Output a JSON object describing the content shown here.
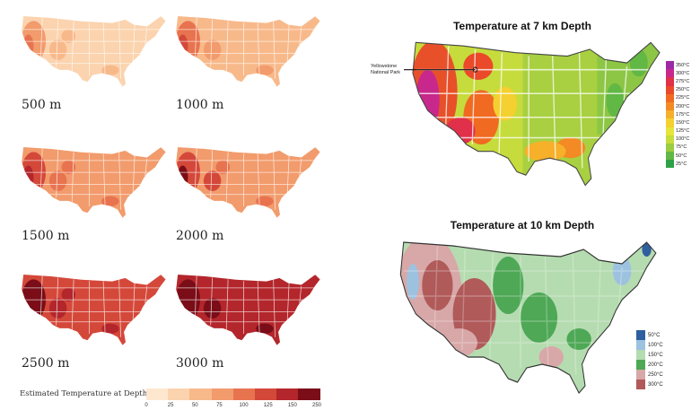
{
  "small_maps": [
    {
      "label": "500 m",
      "level": 0.12
    },
    {
      "label": "1000 m",
      "level": 0.22
    },
    {
      "label": "1500 m",
      "level": 0.38
    },
    {
      "label": "2000 m",
      "level": 0.48
    },
    {
      "label": "2500 m",
      "level": 0.68
    },
    {
      "label": "3000 m",
      "level": 0.8
    }
  ],
  "bottom_legend": {
    "title": "Estimated Temperature at Depth (°C)",
    "ticks": [
      "0",
      "25",
      "50",
      "75",
      "100",
      "125",
      "150",
      "250"
    ],
    "colors": [
      "#fde7cf",
      "#fbd3ae",
      "#f8b98a",
      "#f29b6c",
      "#e8734f",
      "#d4483a",
      "#b3262b",
      "#7a0d17"
    ]
  },
  "map_7km": {
    "title": "Temperature at 7 km Depth",
    "annotation_line1": "Yellowstone",
    "annotation_line2": "National Park",
    "legend": [
      {
        "label": "350°C",
        "color": "#9c2aa6"
      },
      {
        "label": "300°C",
        "color": "#c8288c"
      },
      {
        "label": "275°C",
        "color": "#e0304a"
      },
      {
        "label": "250°C",
        "color": "#ea4a2a"
      },
      {
        "label": "225°C",
        "color": "#f06a22"
      },
      {
        "label": "200°C",
        "color": "#f48a24"
      },
      {
        "label": "175°C",
        "color": "#f6b02a"
      },
      {
        "label": "150°C",
        "color": "#f4d030"
      },
      {
        "label": "125°C",
        "color": "#e8e43a"
      },
      {
        "label": "100°C",
        "color": "#c8dc3c"
      },
      {
        "label": "75°C",
        "color": "#9ccc40"
      },
      {
        "label": "50°C",
        "color": "#62b844"
      },
      {
        "label": "25°C",
        "color": "#2ea048"
      }
    ]
  },
  "map_10km": {
    "title": "Temperature at 10 km Depth",
    "legend": [
      {
        "label": "50°C",
        "color": "#2f5f9e"
      },
      {
        "label": "100°C",
        "color": "#9cc2e0"
      },
      {
        "label": "150°C",
        "color": "#b5dcb0"
      },
      {
        "label": "200°C",
        "color": "#4ea856"
      },
      {
        "label": "250°C",
        "color": "#d8a8a8"
      },
      {
        "label": "300°C",
        "color": "#b05a5a"
      }
    ]
  }
}
